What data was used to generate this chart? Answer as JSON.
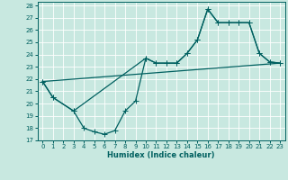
{
  "xlabel": "Humidex (Indice chaleur)",
  "bg_color": "#c8e8e0",
  "line_color": "#006060",
  "grid_color": "#ffffff",
  "xlim": [
    -0.5,
    23.5
  ],
  "ylim": [
    17,
    28.3
  ],
  "xticks": [
    0,
    1,
    2,
    3,
    4,
    5,
    6,
    7,
    8,
    9,
    10,
    11,
    12,
    13,
    14,
    15,
    16,
    17,
    18,
    19,
    20,
    21,
    22,
    23
  ],
  "yticks": [
    17,
    18,
    19,
    20,
    21,
    22,
    23,
    24,
    25,
    26,
    27,
    28
  ],
  "line1_x": [
    0,
    1,
    3,
    4,
    5,
    6,
    7,
    8,
    9,
    10,
    11,
    12,
    13,
    14,
    15,
    16,
    17,
    18,
    19,
    20,
    21,
    22,
    23
  ],
  "line1_y": [
    21.8,
    20.5,
    19.4,
    18.0,
    17.7,
    17.5,
    17.8,
    19.4,
    20.2,
    23.7,
    23.3,
    23.3,
    23.3,
    24.1,
    25.2,
    27.7,
    26.6,
    26.6,
    26.6,
    26.6,
    24.1,
    23.4,
    23.3
  ],
  "line2_x": [
    0,
    1,
    3,
    10,
    11,
    12,
    13,
    14,
    15,
    16,
    17,
    18,
    19,
    20,
    21,
    22,
    23
  ],
  "line2_y": [
    21.8,
    20.5,
    19.4,
    23.7,
    23.3,
    23.3,
    23.3,
    24.1,
    25.2,
    27.7,
    26.6,
    26.6,
    26.6,
    26.6,
    24.1,
    23.4,
    23.3
  ],
  "line3_x": [
    0,
    23
  ],
  "line3_y": [
    21.8,
    23.3
  ],
  "marker_size": 2.2,
  "line_width": 0.9
}
